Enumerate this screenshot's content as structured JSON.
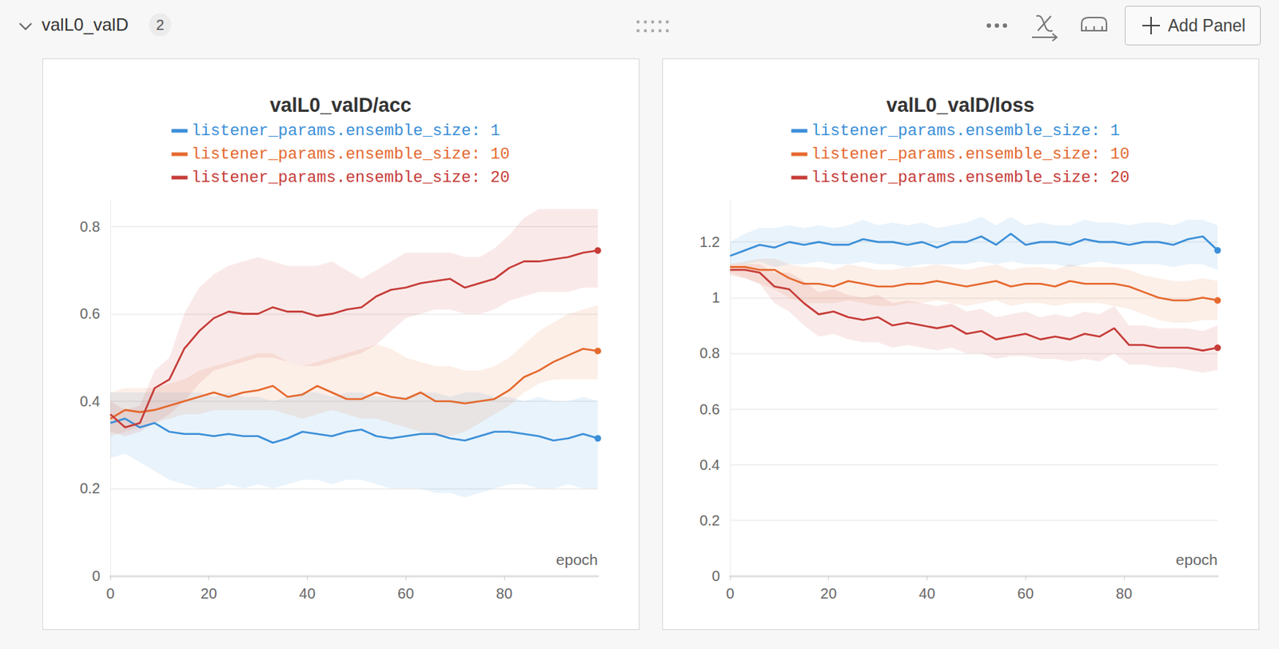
{
  "header": {
    "title": "valL0_valD",
    "count": 2,
    "button": "Add Panel"
  },
  "chart_data": [
    {
      "type": "line",
      "title": "valL0_valD/acc",
      "x_label": "epoch",
      "x": [
        0,
        3,
        6,
        9,
        12,
        15,
        18,
        21,
        24,
        27,
        30,
        33,
        36,
        39,
        42,
        45,
        48,
        51,
        54,
        57,
        60,
        63,
        66,
        69,
        72,
        75,
        78,
        81,
        84,
        87,
        90,
        93,
        96,
        99
      ],
      "xlim": [
        0,
        99
      ],
      "xticks": [
        0,
        20,
        40,
        60,
        80
      ],
      "ylim": [
        0,
        0.86
      ],
      "yticks": [
        0,
        0.2,
        0.4,
        0.6,
        0.8
      ],
      "grid": true,
      "legend": "top",
      "series": [
        {
          "name": "listener_params.ensemble_size: 1",
          "color": "#3b8fd8",
          "values": [
            0.35,
            0.36,
            0.34,
            0.35,
            0.33,
            0.325,
            0.325,
            0.32,
            0.325,
            0.32,
            0.32,
            0.305,
            0.315,
            0.33,
            0.325,
            0.32,
            0.33,
            0.335,
            0.32,
            0.315,
            0.32,
            0.325,
            0.325,
            0.315,
            0.31,
            0.32,
            0.33,
            0.33,
            0.325,
            0.32,
            0.31,
            0.315,
            0.325,
            0.315
          ],
          "lower": [
            0.27,
            0.28,
            0.26,
            0.24,
            0.22,
            0.21,
            0.2,
            0.2,
            0.21,
            0.2,
            0.21,
            0.2,
            0.21,
            0.22,
            0.22,
            0.21,
            0.22,
            0.22,
            0.21,
            0.2,
            0.2,
            0.2,
            0.19,
            0.19,
            0.18,
            0.19,
            0.2,
            0.21,
            0.21,
            0.2,
            0.2,
            0.21,
            0.2,
            0.2
          ],
          "upper": [
            0.42,
            0.42,
            0.42,
            0.42,
            0.42,
            0.42,
            0.42,
            0.41,
            0.42,
            0.41,
            0.41,
            0.4,
            0.41,
            0.42,
            0.42,
            0.41,
            0.42,
            0.42,
            0.41,
            0.41,
            0.41,
            0.42,
            0.42,
            0.41,
            0.42,
            0.42,
            0.41,
            0.41,
            0.4,
            0.41,
            0.4,
            0.4,
            0.41,
            0.4
          ]
        },
        {
          "name": "listener_params.ensemble_size: 10",
          "color": "#e5692e",
          "values": [
            0.36,
            0.38,
            0.375,
            0.38,
            0.39,
            0.4,
            0.41,
            0.42,
            0.41,
            0.42,
            0.425,
            0.435,
            0.41,
            0.415,
            0.435,
            0.42,
            0.405,
            0.405,
            0.42,
            0.41,
            0.405,
            0.42,
            0.4,
            0.4,
            0.395,
            0.4,
            0.405,
            0.425,
            0.455,
            0.47,
            0.49,
            0.505,
            0.52,
            0.515
          ],
          "lower": [
            0.32,
            0.33,
            0.34,
            0.35,
            0.36,
            0.37,
            0.37,
            0.38,
            0.38,
            0.38,
            0.38,
            0.38,
            0.37,
            0.36,
            0.37,
            0.38,
            0.37,
            0.36,
            0.36,
            0.35,
            0.34,
            0.33,
            0.32,
            0.32,
            0.33,
            0.35,
            0.37,
            0.39,
            0.42,
            0.44,
            0.45,
            0.45,
            0.45,
            0.45
          ],
          "upper": [
            0.42,
            0.43,
            0.43,
            0.43,
            0.44,
            0.45,
            0.47,
            0.48,
            0.49,
            0.5,
            0.51,
            0.51,
            0.49,
            0.48,
            0.49,
            0.5,
            0.51,
            0.52,
            0.53,
            0.52,
            0.5,
            0.49,
            0.48,
            0.48,
            0.47,
            0.47,
            0.48,
            0.5,
            0.53,
            0.56,
            0.58,
            0.6,
            0.61,
            0.62
          ]
        },
        {
          "name": "listener_params.ensemble_size: 20",
          "color": "#c63c38",
          "values": [
            0.37,
            0.34,
            0.35,
            0.43,
            0.45,
            0.52,
            0.56,
            0.59,
            0.605,
            0.6,
            0.6,
            0.615,
            0.605,
            0.605,
            0.595,
            0.6,
            0.61,
            0.615,
            0.64,
            0.655,
            0.66,
            0.67,
            0.675,
            0.68,
            0.66,
            0.67,
            0.68,
            0.705,
            0.72,
            0.72,
            0.725,
            0.73,
            0.74,
            0.745
          ],
          "lower": [
            0.33,
            0.32,
            0.33,
            0.35,
            0.37,
            0.4,
            0.44,
            0.47,
            0.48,
            0.49,
            0.5,
            0.5,
            0.49,
            0.48,
            0.48,
            0.49,
            0.5,
            0.51,
            0.53,
            0.56,
            0.59,
            0.6,
            0.61,
            0.61,
            0.6,
            0.6,
            0.61,
            0.63,
            0.64,
            0.65,
            0.65,
            0.65,
            0.66,
            0.66
          ],
          "upper": [
            0.4,
            0.38,
            0.39,
            0.47,
            0.5,
            0.6,
            0.66,
            0.69,
            0.71,
            0.72,
            0.73,
            0.72,
            0.71,
            0.71,
            0.71,
            0.72,
            0.7,
            0.68,
            0.7,
            0.72,
            0.74,
            0.74,
            0.74,
            0.74,
            0.73,
            0.73,
            0.75,
            0.78,
            0.82,
            0.84,
            0.84,
            0.84,
            0.84,
            0.84
          ]
        }
      ]
    },
    {
      "type": "line",
      "title": "valL0_valD/loss",
      "x_label": "epoch",
      "x": [
        0,
        3,
        6,
        9,
        12,
        15,
        18,
        21,
        24,
        27,
        30,
        33,
        36,
        39,
        42,
        45,
        48,
        51,
        54,
        57,
        60,
        63,
        66,
        69,
        72,
        75,
        78,
        81,
        84,
        87,
        90,
        93,
        96,
        99
      ],
      "xlim": [
        0,
        99
      ],
      "xticks": [
        0,
        20,
        40,
        60,
        80
      ],
      "ylim": [
        0,
        1.35
      ],
      "yticks": [
        0,
        0.2,
        0.4,
        0.6,
        0.8,
        1,
        1.2
      ],
      "grid": true,
      "legend": "top",
      "series": [
        {
          "name": "listener_params.ensemble_size: 1",
          "color": "#3b8fd8",
          "values": [
            1.15,
            1.17,
            1.19,
            1.18,
            1.2,
            1.19,
            1.2,
            1.19,
            1.19,
            1.21,
            1.2,
            1.2,
            1.19,
            1.2,
            1.18,
            1.2,
            1.2,
            1.22,
            1.19,
            1.23,
            1.19,
            1.2,
            1.2,
            1.19,
            1.21,
            1.2,
            1.2,
            1.19,
            1.2,
            1.2,
            1.19,
            1.21,
            1.22,
            1.17
          ],
          "lower": [
            1.12,
            1.12,
            1.13,
            1.11,
            1.12,
            1.12,
            1.13,
            1.12,
            1.12,
            1.13,
            1.12,
            1.12,
            1.11,
            1.12,
            1.12,
            1.12,
            1.12,
            1.13,
            1.12,
            1.13,
            1.12,
            1.12,
            1.12,
            1.11,
            1.12,
            1.13,
            1.12,
            1.12,
            1.12,
            1.12,
            1.11,
            1.12,
            1.12,
            1.1
          ],
          "upper": [
            1.2,
            1.23,
            1.25,
            1.25,
            1.26,
            1.25,
            1.26,
            1.25,
            1.26,
            1.28,
            1.26,
            1.27,
            1.26,
            1.27,
            1.25,
            1.26,
            1.27,
            1.29,
            1.26,
            1.29,
            1.26,
            1.27,
            1.26,
            1.26,
            1.28,
            1.27,
            1.27,
            1.26,
            1.27,
            1.27,
            1.26,
            1.28,
            1.28,
            1.26
          ]
        },
        {
          "name": "listener_params.ensemble_size: 10",
          "color": "#e5692e",
          "values": [
            1.11,
            1.11,
            1.1,
            1.1,
            1.07,
            1.05,
            1.05,
            1.04,
            1.06,
            1.05,
            1.04,
            1.04,
            1.05,
            1.05,
            1.06,
            1.05,
            1.04,
            1.05,
            1.06,
            1.04,
            1.05,
            1.05,
            1.04,
            1.06,
            1.05,
            1.05,
            1.05,
            1.04,
            1.02,
            1.0,
            0.99,
            0.99,
            1.0,
            0.99
          ],
          "lower": [
            1.09,
            1.07,
            1.05,
            1.03,
            1.0,
            0.98,
            0.98,
            0.98,
            0.99,
            0.98,
            0.97,
            0.97,
            0.98,
            0.98,
            0.99,
            0.98,
            0.97,
            0.98,
            0.99,
            0.97,
            0.98,
            0.98,
            0.97,
            0.98,
            0.98,
            0.98,
            0.97,
            0.96,
            0.94,
            0.92,
            0.91,
            0.91,
            0.92,
            0.92
          ],
          "upper": [
            1.12,
            1.13,
            1.14,
            1.14,
            1.12,
            1.11,
            1.11,
            1.1,
            1.12,
            1.11,
            1.1,
            1.1,
            1.11,
            1.11,
            1.12,
            1.11,
            1.1,
            1.11,
            1.12,
            1.1,
            1.11,
            1.11,
            1.1,
            1.12,
            1.11,
            1.11,
            1.11,
            1.1,
            1.08,
            1.07,
            1.06,
            1.06,
            1.07,
            1.06
          ]
        },
        {
          "name": "listener_params.ensemble_size: 20",
          "color": "#c63c38",
          "values": [
            1.1,
            1.1,
            1.09,
            1.04,
            1.03,
            0.98,
            0.94,
            0.95,
            0.93,
            0.92,
            0.93,
            0.9,
            0.91,
            0.9,
            0.89,
            0.9,
            0.87,
            0.88,
            0.85,
            0.86,
            0.87,
            0.85,
            0.86,
            0.85,
            0.87,
            0.86,
            0.89,
            0.83,
            0.83,
            0.82,
            0.82,
            0.82,
            0.81,
            0.82
          ],
          "lower": [
            1.08,
            1.07,
            1.05,
            0.98,
            0.95,
            0.9,
            0.86,
            0.87,
            0.85,
            0.84,
            0.84,
            0.82,
            0.83,
            0.82,
            0.81,
            0.82,
            0.8,
            0.8,
            0.78,
            0.79,
            0.79,
            0.78,
            0.78,
            0.77,
            0.78,
            0.77,
            0.8,
            0.76,
            0.76,
            0.75,
            0.75,
            0.74,
            0.73,
            0.74
          ],
          "upper": [
            1.12,
            1.12,
            1.12,
            1.09,
            1.09,
            1.06,
            1.02,
            1.03,
            1.01,
            1.0,
            1.01,
            0.98,
            0.99,
            0.98,
            0.97,
            0.98,
            0.95,
            0.96,
            0.93,
            0.94,
            0.95,
            0.93,
            0.94,
            0.93,
            0.95,
            0.94,
            0.97,
            0.9,
            0.9,
            0.89,
            0.89,
            0.89,
            0.88,
            0.9
          ]
        }
      ]
    }
  ]
}
